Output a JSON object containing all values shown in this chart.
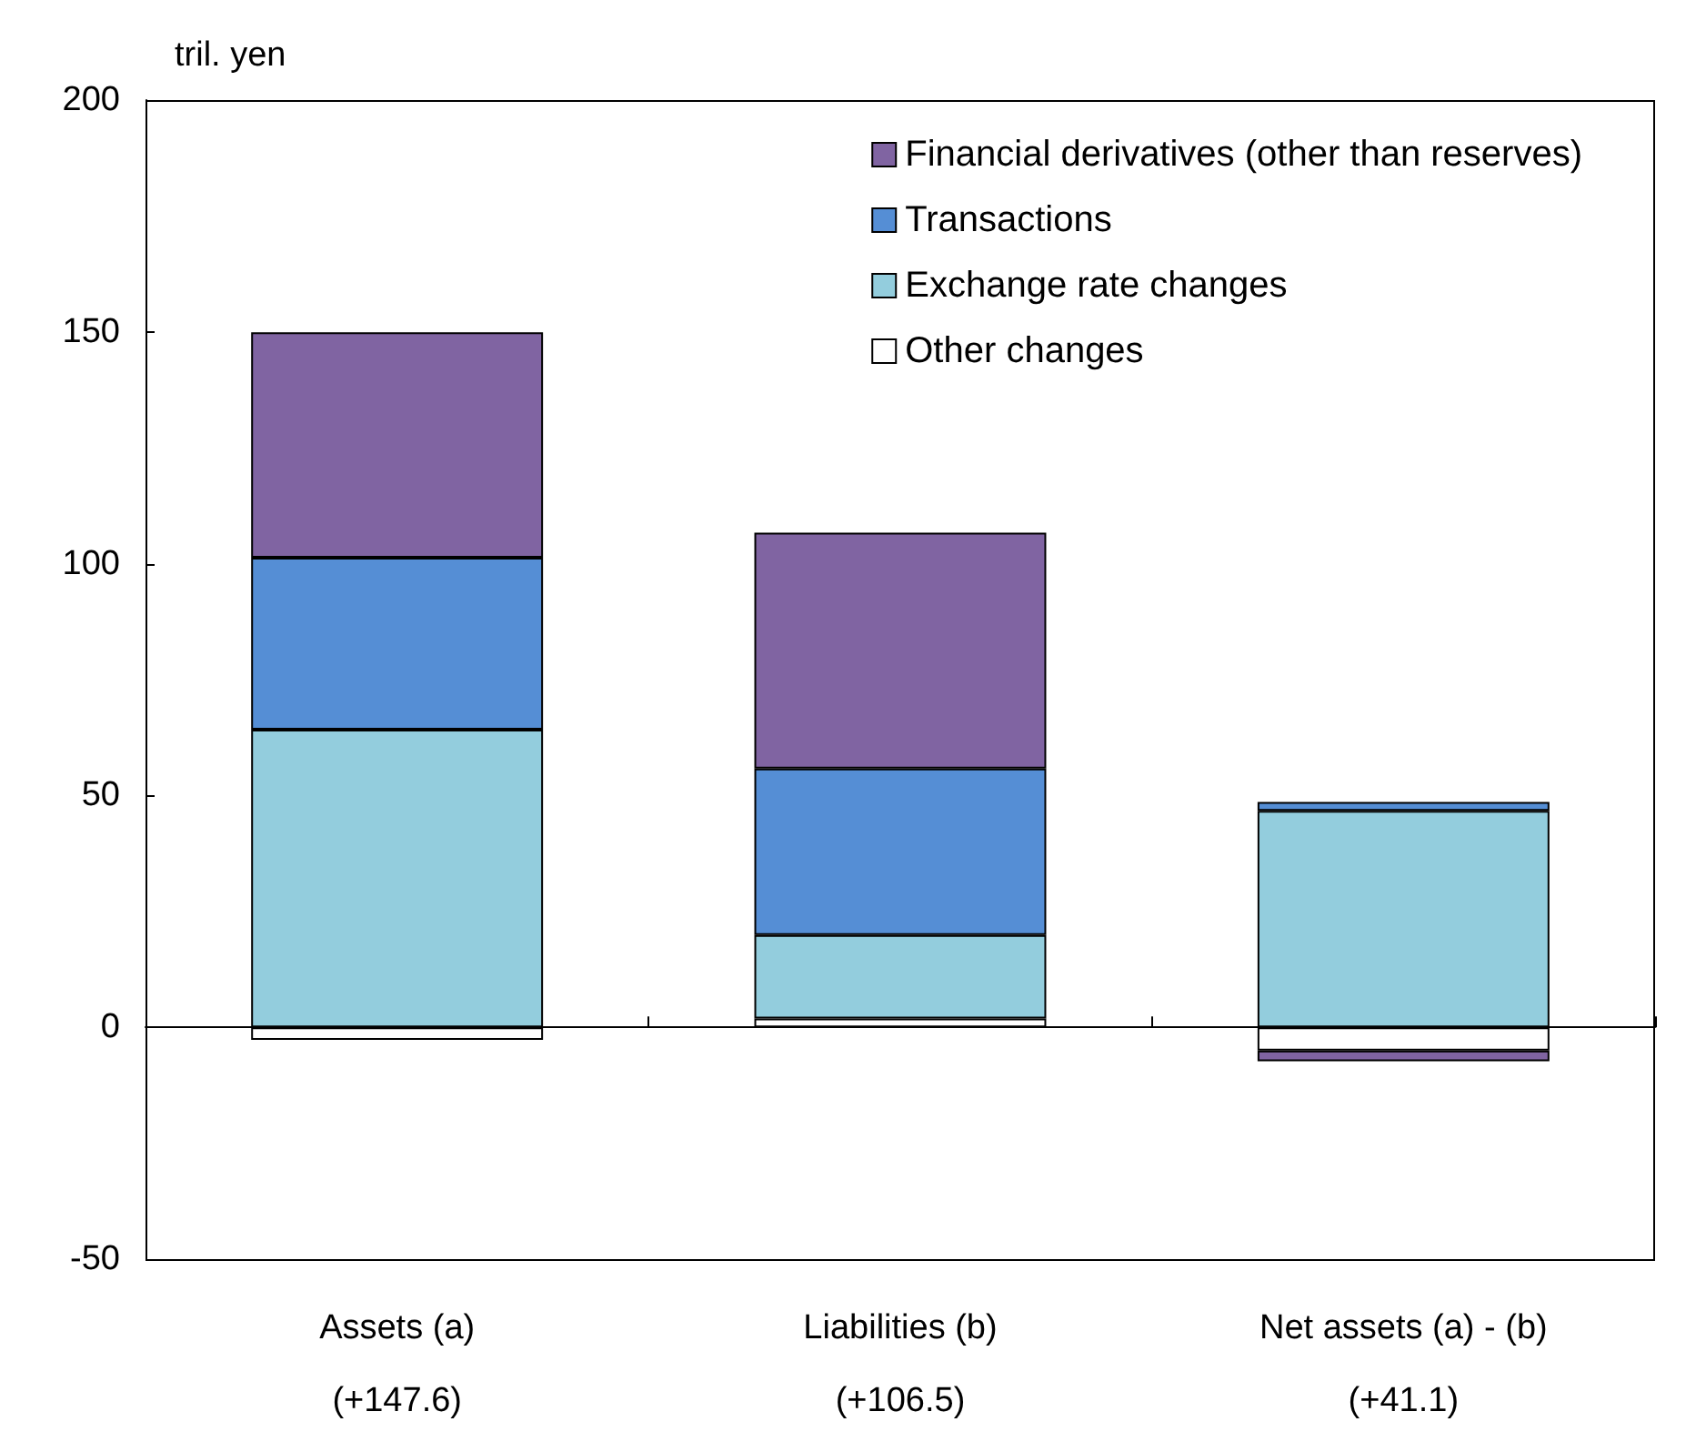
{
  "chart_data": {
    "type": "bar",
    "stacked": true,
    "ylabel": "tril. yen",
    "categories": [
      "Assets (a)\n(+147.6)",
      "Liabilities (b)\n(+106.5)",
      "Net assets (a) - (b)\n(+41.1)"
    ],
    "series": [
      {
        "name": "Other changes",
        "color": "#ffffff",
        "values": [
          -2.7,
          1.9,
          -5.0
        ]
      },
      {
        "name": "Exchange rate changes",
        "color": "#93cddd",
        "values": [
          64.2,
          18.0,
          46.7
        ]
      },
      {
        "name": "Transactions",
        "color": "#558ed5",
        "values": [
          37.1,
          35.9,
          1.9
        ]
      },
      {
        "name": "Financial derivatives (other than reserves)",
        "color": "#8064a2",
        "values": [
          48.6,
          50.9,
          -2.3
        ]
      }
    ],
    "ylim": [
      -50,
      200
    ],
    "yticks": [
      -50,
      0,
      50,
      100,
      150,
      200
    ],
    "legend": "top right"
  }
}
